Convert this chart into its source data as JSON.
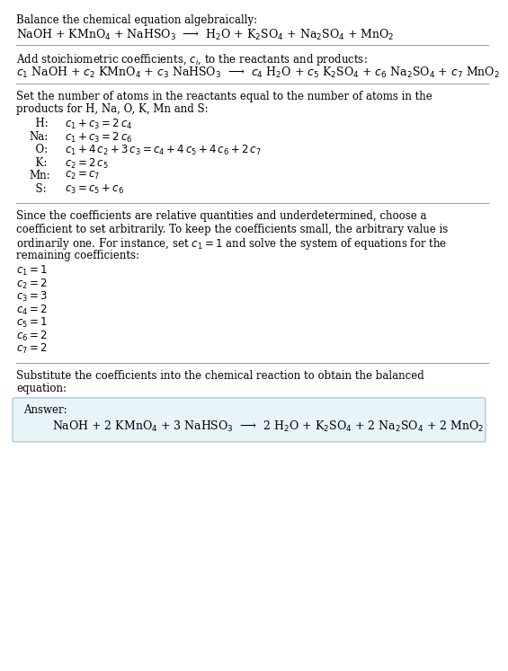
{
  "bg_color": "#ffffff",
  "text_color": "#000000",
  "fig_width": 5.38,
  "fig_height": 7.27,
  "title_text": "Balance the chemical equation algebraically:",
  "eq1_plain": "NaOH + KMnO$_4$ + NaHSO$_3$  ⟶  H$_2$O + K$_2$SO$_4$ + Na$_2$SO$_4$ + MnO$_2$",
  "add_coeff_text": "Add stoichiometric coefficients, $c_i$, to the reactants and products:",
  "eq2_plain": "$c_1$ NaOH + $c_2$ KMnO$_4$ + $c_3$ NaHSO$_3$  ⟶  $c_4$ H$_2$O + $c_5$ K$_2$SO$_4$ + $c_6$ Na$_2$SO$_4$ + $c_7$ MnO$_2$",
  "set_atoms_text_line1": "Set the number of atoms in the reactants equal to the number of atoms in the",
  "set_atoms_text_line2": "products for H, Na, O, K, Mn and S:",
  "equations": [
    [
      "  H:",
      "$c_1 + c_3 = 2\\,c_4$"
    ],
    [
      "Na:",
      "$c_1 + c_3 = 2\\,c_6$"
    ],
    [
      "  O:",
      "$c_1 + 4\\,c_2 + 3\\,c_3 = c_4 + 4\\,c_5 + 4\\,c_6 + 2\\,c_7$"
    ],
    [
      "  K:",
      "$c_2 = 2\\,c_5$"
    ],
    [
      "Mn:",
      "$c_2 = c_7$"
    ],
    [
      "  S:",
      "$c_3 = c_5 + c_6$"
    ]
  ],
  "since_text_line1": "Since the coefficients are relative quantities and underdetermined, choose a",
  "since_text_line2": "coefficient to set arbitrarily. To keep the coefficients small, the arbitrary value is",
  "since_text_line3": "ordinarily one. For instance, set $c_1 = 1$ and solve the system of equations for the",
  "since_text_line4": "remaining coefficients:",
  "coefficients": [
    "$c_1 = 1$",
    "$c_2 = 2$",
    "$c_3 = 3$",
    "$c_4 = 2$",
    "$c_5 = 1$",
    "$c_6 = 2$",
    "$c_7 = 2$"
  ],
  "substitute_text_line1": "Substitute the coefficients into the chemical reaction to obtain the balanced",
  "substitute_text_line2": "equation:",
  "answer_label": "Answer:",
  "answer_eq": "NaOH + 2 KMnO$_4$ + 3 NaHSO$_3$  ⟶  2 H$_2$O + K$_2$SO$_4$ + 2 Na$_2$SO$_4$ + 2 MnO$_2$",
  "answer_box_color": "#e8f4f8",
  "divider_color": "#999999",
  "font_size_body": 8.5,
  "font_size_math": 8.5,
  "font_size_eq": 9.0
}
